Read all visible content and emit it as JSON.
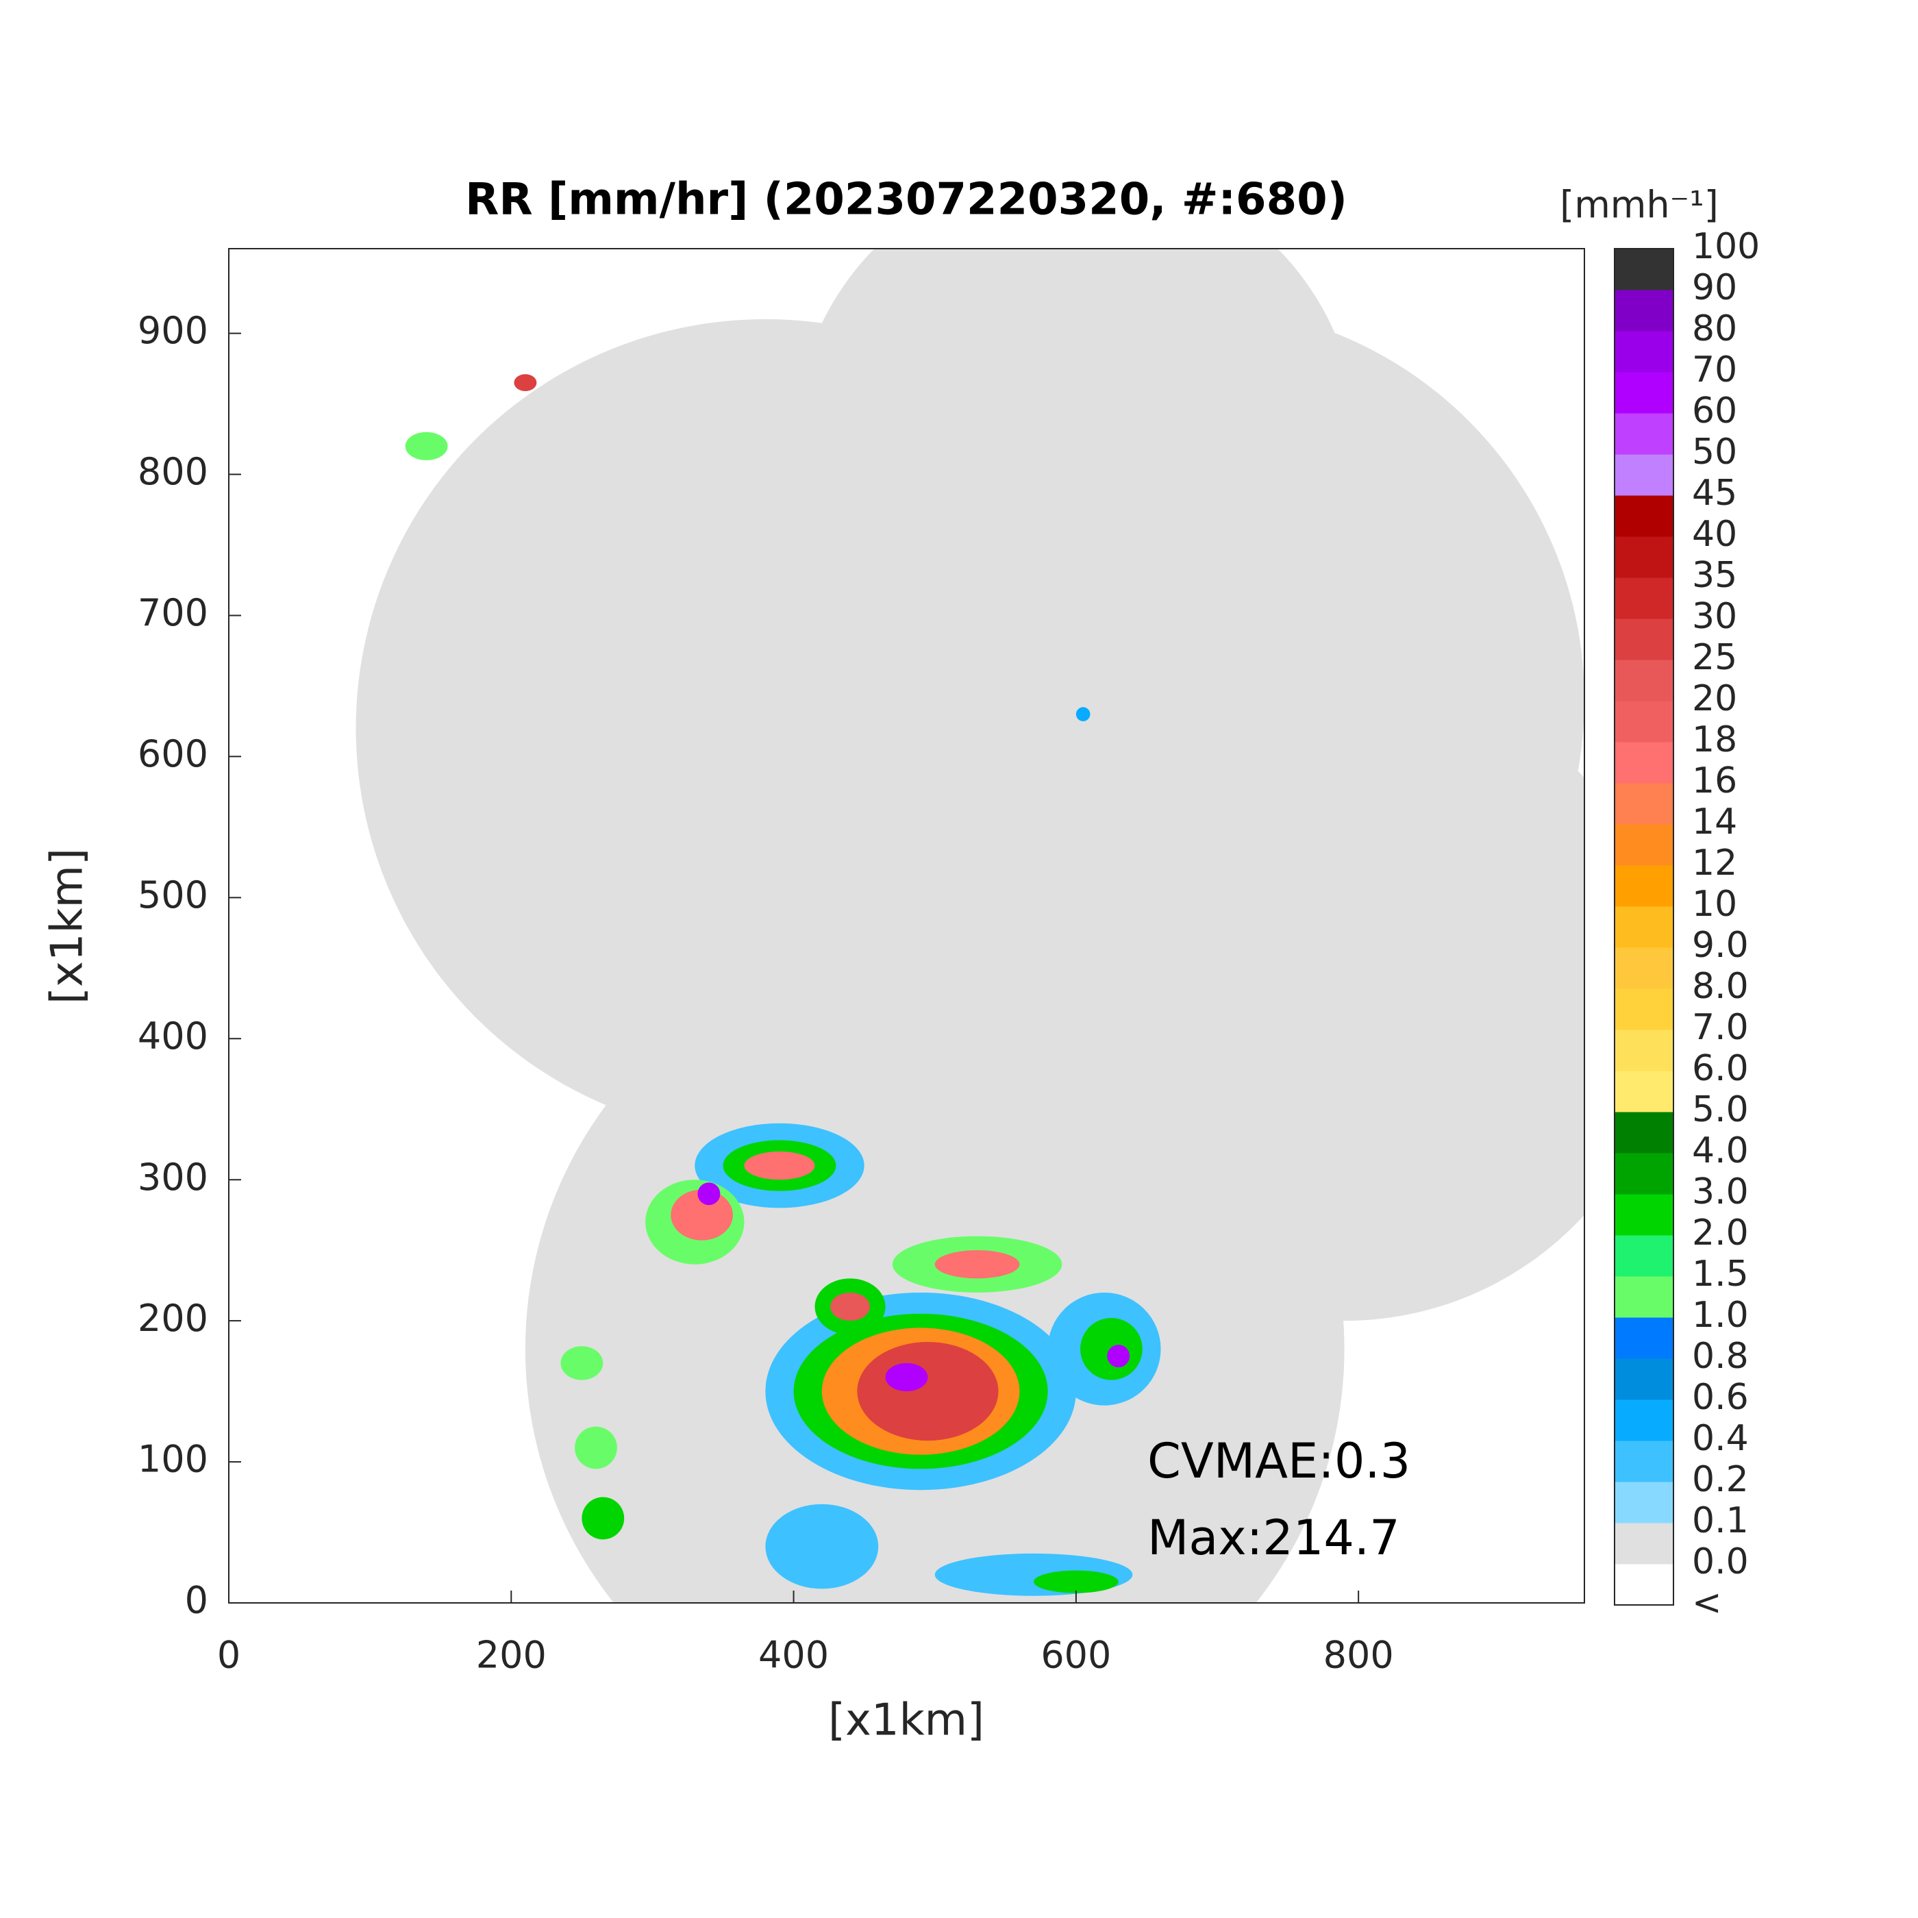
{
  "chart_data": {
    "type": "map",
    "title": "RR [mm/hr] (202307220320, #:680)",
    "x_label": "[x1km]",
    "y_label": "[x1km]",
    "xlim": [
      0,
      960
    ],
    "ylim": [
      0,
      960
    ],
    "xticks": [
      0,
      200,
      400,
      600,
      800
    ],
    "yticks": [
      0,
      100,
      200,
      300,
      400,
      500,
      600,
      700,
      800,
      900
    ],
    "annotations": [
      "CVMAE:0.3",
      "Max:214.7"
    ],
    "colorbar": {
      "title": "[mmh⁻¹]",
      "labels": [
        "<",
        "0.0",
        "0.1",
        "0.2",
        "0.4",
        "0.6",
        "0.8",
        "1.0",
        "1.5",
        "2.0",
        "3.0",
        "4.0",
        "5.0",
        "6.0",
        "7.0",
        "8.0",
        "9.0",
        "10",
        "12",
        "14",
        "16",
        "18",
        "20",
        "25",
        "30",
        "35",
        "40",
        "45",
        "50",
        "60",
        "70",
        "80",
        "90",
        "100"
      ],
      "colors": [
        "#ffffff",
        "#e0e0e0",
        "#87d9ff",
        "#3ec1ff",
        "#07abff",
        "#008dde",
        "#007bff",
        "#69fc69",
        "#1ef26f",
        "#00d500",
        "#00a400",
        "#008000",
        "#ffea6e",
        "#ffe05a",
        "#ffd23c",
        "#ffc83c",
        "#ffbc1e",
        "#ffa000",
        "#ff8c1e",
        "#ff8050",
        "#ff7070",
        "#f06060",
        "#e85858",
        "#dc4040",
        "#d02828",
        "#c01414",
        "#b00000",
        "#c080ff",
        "#c040ff",
        "#b000ff",
        "#9a00ea",
        "#8000c8",
        "#333333"
      ]
    }
  }
}
